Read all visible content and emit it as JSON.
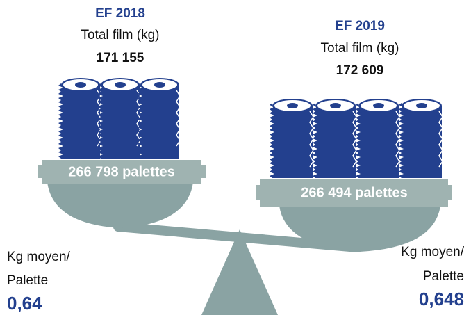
{
  "left": {
    "title": "EF 2018",
    "subtitle": "Total film (kg)",
    "total": "171 155",
    "pallets": "266 798 palettes",
    "avg_label_1": "Kg moyen/",
    "avg_label_2": "Palette",
    "avg": "0,64"
  },
  "right": {
    "title": "EF 2019",
    "subtitle": "Total film (kg)",
    "total": "172 609",
    "pallets": "266 494 palettes",
    "avg_label_1": "Kg moyen/",
    "avg_label_2": "Palette",
    "avg": "0,648"
  }
}
